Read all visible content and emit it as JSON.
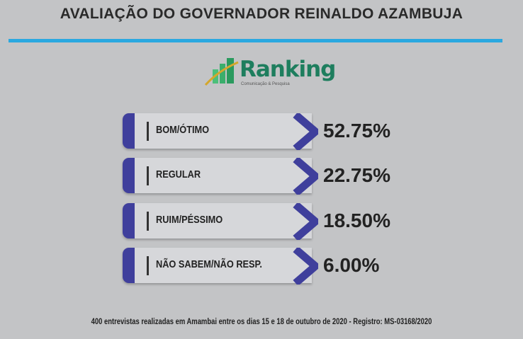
{
  "title": "AVALIAÇÃO DO GOVERNADOR REINALDO AZAMBUJA",
  "logo": {
    "name": "Ranking",
    "tagline": "Comunicação & Pesquisa"
  },
  "colors": {
    "accent_rule": "#2aa8e0",
    "box_accent": "#3f3f9c",
    "logo_green": "#1e7e5e"
  },
  "chart_data": {
    "type": "table",
    "categories": [
      "BOM/ÓTIMO",
      "REGULAR",
      "RUIM/PÉSSIMO",
      "NÃO SABEM/NÃO RESP."
    ],
    "values": [
      52.75,
      22.75,
      18.5,
      6.0
    ],
    "labels": [
      "52.75%",
      "22.75%",
      "18.50%",
      "6.00%"
    ]
  },
  "footer": "400 entrevistas realizadas em Amambai entre os dias 15 e 18 de outubro de 2020 - Registro: MS-03168/2020"
}
